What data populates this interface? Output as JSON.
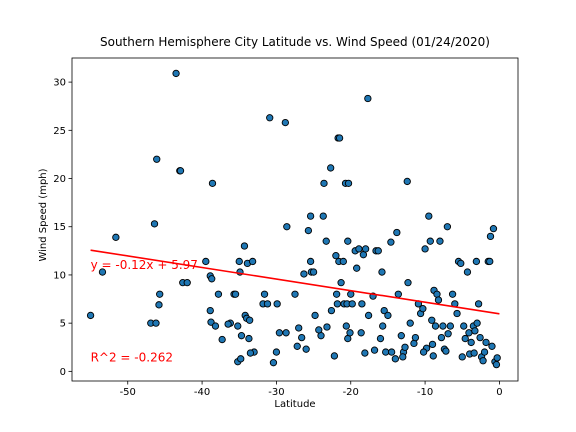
{
  "chart_data": {
    "type": "scatter",
    "title": "Southern Hemisphere City Latitude vs. Wind Speed (01/24/2020)",
    "xlabel": "Latitude",
    "ylabel": "Wind Speed (mph)",
    "xlim": [
      -57.5,
      2.5
    ],
    "ylim": [
      -1,
      32.5
    ],
    "xticks": [
      -50,
      -40,
      -30,
      -20,
      -10,
      0
    ],
    "yticks": [
      0,
      5,
      10,
      15,
      20,
      25,
      30
    ],
    "grid": false,
    "marker_color": "#1f77b4",
    "marker_edge": "#000000",
    "line_color": "#ff0000",
    "regression": {
      "slope": -0.12,
      "intercept": 5.97,
      "x_start": -55,
      "x_end": 0
    },
    "annotations": [
      {
        "text": "y = -0.12x + 5.97",
        "x": -55,
        "y": 10.6
      },
      {
        "text": "R^2 = -0.262",
        "x": -55,
        "y": 1.0
      }
    ],
    "points": [
      [
        -55,
        5.8
      ],
      [
        -53.4,
        10.3
      ],
      [
        -51.6,
        13.9
      ],
      [
        -46.9,
        5.0
      ],
      [
        -46.4,
        15.3
      ],
      [
        -46.1,
        22.0
      ],
      [
        -45.7,
        8.0
      ],
      [
        -45.8,
        6.9
      ],
      [
        -46.2,
        5.0
      ],
      [
        -43.5,
        30.9
      ],
      [
        -43.0,
        20.8
      ],
      [
        -42.9,
        20.8
      ],
      [
        -42.6,
        9.2
      ],
      [
        -42.0,
        9.2
      ],
      [
        -39.5,
        11.4
      ],
      [
        -38.9,
        9.9
      ],
      [
        -38.6,
        19.5
      ],
      [
        -38.7,
        9.6
      ],
      [
        -38.9,
        6.3
      ],
      [
        -38.8,
        5.1
      ],
      [
        -38.2,
        4.7
      ],
      [
        -37.8,
        8.0
      ],
      [
        -36.2,
        5.0
      ],
      [
        -35.7,
        8.0
      ],
      [
        -35.5,
        8.0
      ],
      [
        -35.2,
        4.7
      ],
      [
        -35.2,
        1.0
      ],
      [
        -34.8,
        1.3
      ],
      [
        -34.9,
        10.3
      ],
      [
        -35.0,
        11.4
      ],
      [
        -34.7,
        3.7
      ],
      [
        -34.3,
        13.0
      ],
      [
        -34.2,
        5.8
      ],
      [
        -34.0,
        5.5
      ],
      [
        -33.9,
        11.2
      ],
      [
        -33.7,
        3.4
      ],
      [
        -33.6,
        5.3
      ],
      [
        -33.2,
        11.4
      ],
      [
        -33.0,
        2.0
      ],
      [
        -33.5,
        1.9
      ],
      [
        -31.8,
        7.0
      ],
      [
        -31.6,
        8.0
      ],
      [
        -31.2,
        7.0
      ],
      [
        -30.9,
        26.3
      ],
      [
        -30.4,
        0.9
      ],
      [
        -30.0,
        2.0
      ],
      [
        -29.9,
        7.0
      ],
      [
        -29.6,
        4.0
      ],
      [
        -28.8,
        25.8
      ],
      [
        -28.6,
        15.0
      ],
      [
        -28.7,
        4.0
      ],
      [
        -27.5,
        8.0
      ],
      [
        -27.0,
        4.5
      ],
      [
        -26.6,
        3.5
      ],
      [
        -26.3,
        10.1
      ],
      [
        -25.7,
        14.6
      ],
      [
        -25.4,
        16.1
      ],
      [
        -25.3,
        10.3
      ],
      [
        -25.0,
        10.3
      ],
      [
        -25.4,
        11.4
      ],
      [
        -24.8,
        5.8
      ],
      [
        -24.0,
        3.7
      ],
      [
        -23.7,
        16.1
      ],
      [
        -23.6,
        19.5
      ],
      [
        -23.3,
        13.5
      ],
      [
        -23.2,
        4.6
      ],
      [
        -22.7,
        21.1
      ],
      [
        -22.6,
        6.3
      ],
      [
        -22.2,
        1.6
      ],
      [
        -22.0,
        12.0
      ],
      [
        -21.9,
        8.0
      ],
      [
        -21.7,
        24.2
      ],
      [
        -21.5,
        24.2
      ],
      [
        -21.8,
        7.0
      ],
      [
        -21.6,
        11.4
      ],
      [
        -21.3,
        9.2
      ],
      [
        -21.0,
        11.4
      ],
      [
        -20.9,
        7.0
      ],
      [
        -20.7,
        19.5
      ],
      [
        -20.5,
        7.0
      ],
      [
        -20.6,
        4.7
      ],
      [
        -20.4,
        3.4
      ],
      [
        -20.3,
        19.5
      ],
      [
        -20.4,
        13.5
      ],
      [
        -20.1,
        4.0
      ],
      [
        -20.0,
        8.0
      ],
      [
        -19.8,
        7.0
      ],
      [
        -19.4,
        12.5
      ],
      [
        -19.2,
        10.7
      ],
      [
        -18.9,
        12.7
      ],
      [
        -18.6,
        4.0
      ],
      [
        -18.5,
        7.0
      ],
      [
        -18.3,
        12.1
      ],
      [
        -18.1,
        1.9
      ],
      [
        -18.0,
        12.7
      ],
      [
        -17.7,
        28.3
      ],
      [
        -17.6,
        5.8
      ],
      [
        -17.0,
        7.8
      ],
      [
        -16.6,
        12.5
      ],
      [
        -16.3,
        12.5
      ],
      [
        -16.0,
        3.4
      ],
      [
        -15.8,
        10.3
      ],
      [
        -15.7,
        4.7
      ],
      [
        -15.5,
        6.3
      ],
      [
        -15.3,
        2.0
      ],
      [
        -15.0,
        5.8
      ],
      [
        -14.6,
        13.4
      ],
      [
        -14.5,
        2.0
      ],
      [
        -14.0,
        1.3
      ],
      [
        -13.8,
        14.4
      ],
      [
        -13.6,
        8.0
      ],
      [
        -13.2,
        3.7
      ],
      [
        -12.9,
        2.0
      ],
      [
        -12.7,
        2.5
      ],
      [
        -12.4,
        19.7
      ],
      [
        -12.3,
        9.2
      ],
      [
        -12.0,
        5.0
      ],
      [
        -11.5,
        2.9
      ],
      [
        -11.3,
        3.5
      ],
      [
        -10.9,
        7.0
      ],
      [
        -10.6,
        6.0
      ],
      [
        -10.3,
        6.5
      ],
      [
        -10.0,
        12.7
      ],
      [
        -9.8,
        2.4
      ],
      [
        -9.5,
        16.1
      ],
      [
        -9.3,
        13.5
      ],
      [
        -9.1,
        5.3
      ],
      [
        -9.0,
        2.8
      ],
      [
        -8.9,
        1.6
      ],
      [
        -8.8,
        8.4
      ],
      [
        -8.6,
        4.7
      ],
      [
        -8.4,
        8.0
      ],
      [
        -8.2,
        7.4
      ],
      [
        -8.0,
        13.5
      ],
      [
        -7.8,
        3.5
      ],
      [
        -7.6,
        4.7
      ],
      [
        -7.4,
        2.3
      ],
      [
        -7.0,
        15.0
      ],
      [
        -6.9,
        3.9
      ],
      [
        -6.6,
        4.7
      ],
      [
        -6.3,
        8.0
      ],
      [
        -6.0,
        7.0
      ],
      [
        -5.7,
        6.0
      ],
      [
        -5.5,
        11.4
      ],
      [
        -5.2,
        11.2
      ],
      [
        -5.0,
        1.5
      ],
      [
        -4.8,
        4.7
      ],
      [
        -4.6,
        3.4
      ],
      [
        -4.3,
        10.3
      ],
      [
        -4.1,
        4.0
      ],
      [
        -4.0,
        1.8
      ],
      [
        -3.8,
        3.0
      ],
      [
        -3.5,
        4.7
      ],
      [
        -3.3,
        4.2
      ],
      [
        -3.1,
        11.4
      ],
      [
        -3.0,
        5.0
      ],
      [
        -2.8,
        7.0
      ],
      [
        -2.6,
        3.5
      ],
      [
        -2.4,
        1.5
      ],
      [
        -2.2,
        1.1
      ],
      [
        -2.0,
        2.0
      ],
      [
        -1.8,
        3.0
      ],
      [
        -1.5,
        11.4
      ],
      [
        -1.3,
        11.4
      ],
      [
        -1.2,
        14.0
      ],
      [
        -1.0,
        2.6
      ],
      [
        -0.8,
        14.8
      ],
      [
        -0.6,
        1.0
      ],
      [
        -0.4,
        0.7
      ],
      [
        -0.3,
        1.4
      ],
      [
        -3.4,
        1.9
      ],
      [
        -7.2,
        2.1
      ],
      [
        -10.2,
        2.0
      ],
      [
        -13.0,
        1.5
      ],
      [
        -16.8,
        2.2
      ],
      [
        -24.3,
        4.3
      ],
      [
        -26.0,
        2.3
      ],
      [
        -27.2,
        2.6
      ],
      [
        -36.5,
        4.9
      ],
      [
        -37.3,
        3.3
      ]
    ]
  }
}
